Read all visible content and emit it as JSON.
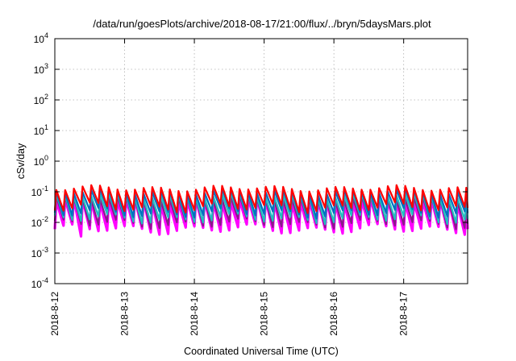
{
  "chart_data": {
    "type": "line",
    "title": "/data/run/goesPlots/archive/2018-08-17/21:00/flux/../bryn/5daysMars.plot",
    "xlabel": "Coordinated Universal Time (UTC)",
    "ylabel": "cSv/day",
    "x_range": [
      "2018-08-12T00:00",
      "2018-08-17T22:00"
    ],
    "x_ticks": [
      "2018-8-12",
      "2018-8-13",
      "2018-8-14",
      "2018-8-15",
      "2018-8-16",
      "2018-8-17"
    ],
    "y_scale": "log",
    "ylim": [
      0.0001,
      10000
    ],
    "y_ticks": [
      {
        "value": 0.0001,
        "base": "10",
        "exp": "-4"
      },
      {
        "value": 0.001,
        "base": "10",
        "exp": "-3"
      },
      {
        "value": 0.01,
        "base": "10",
        "exp": "-2"
      },
      {
        "value": 0.1,
        "base": "10",
        "exp": "-1"
      },
      {
        "value": 1,
        "base": "10",
        "exp": "0"
      },
      {
        "value": 10,
        "base": "10",
        "exp": "1"
      },
      {
        "value": 100,
        "base": "10",
        "exp": "2"
      },
      {
        "value": 1000,
        "base": "10",
        "exp": "3"
      },
      {
        "value": 10000,
        "base": "10",
        "exp": "4"
      }
    ],
    "grid": true,
    "legend": "none",
    "sawtooth_period_hours": 3,
    "series": [
      {
        "color": "#ff00ff",
        "peak": 0.05,
        "trough": 0.006,
        "dip": [
          {
            "start": "2018-08-12T08:00",
            "end": "2018-08-12T10:00",
            "min": 0.0035
          }
        ]
      },
      {
        "color": "#8a1a8a",
        "peak": 0.06,
        "trough": 0.009
      },
      {
        "color": "#20c0c0",
        "peak": 0.075,
        "trough": 0.013
      },
      {
        "color": "#0070c0",
        "peak": 0.1,
        "trough": 0.02
      },
      {
        "color": "#ff0000",
        "peak": 0.13,
        "trough": 0.03
      }
    ]
  }
}
